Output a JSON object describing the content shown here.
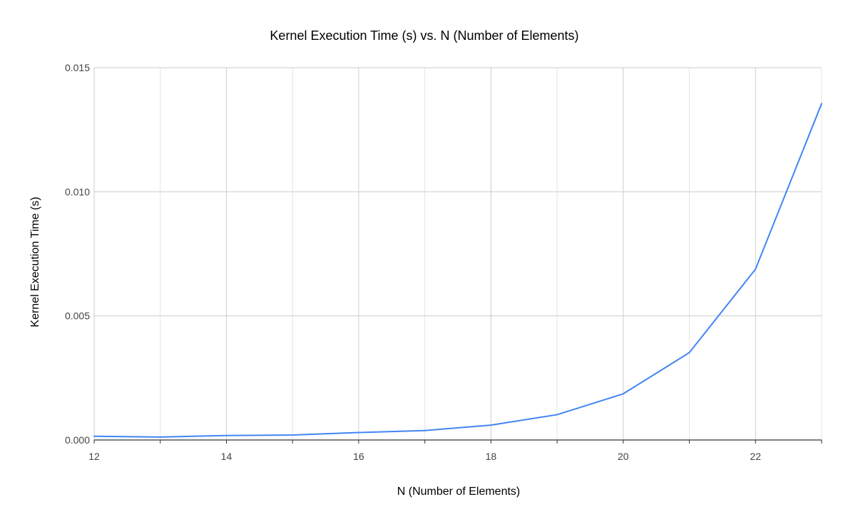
{
  "chart_data": {
    "type": "line",
    "title": "Kernel Execution Time (s) vs. N (Number of Elements)",
    "xlabel": "N (Number of Elements)",
    "ylabel": "Kernel Execution Time (s)",
    "x": [
      12,
      13,
      14,
      15,
      16,
      17,
      18,
      19,
      20,
      21,
      22,
      23
    ],
    "series": [
      {
        "name": "",
        "values": [
          0.00015,
          0.00012,
          0.00018,
          0.0002,
          0.0003,
          0.00038,
          0.0006,
          0.00102,
          0.00186,
          0.00352,
          0.00688,
          0.01355
        ]
      }
    ],
    "xlim": [
      12,
      23
    ],
    "ylim": [
      0,
      0.015
    ],
    "xticks": [
      "12",
      "14",
      "16",
      "18",
      "20",
      "22"
    ],
    "yticks": [
      "0.000",
      "0.005",
      "0.010",
      "0.015"
    ],
    "grid": true,
    "line_color": "#4285f4",
    "gridline_color": "#cccccc",
    "minor_gridline_color": "#e4e4e4"
  }
}
